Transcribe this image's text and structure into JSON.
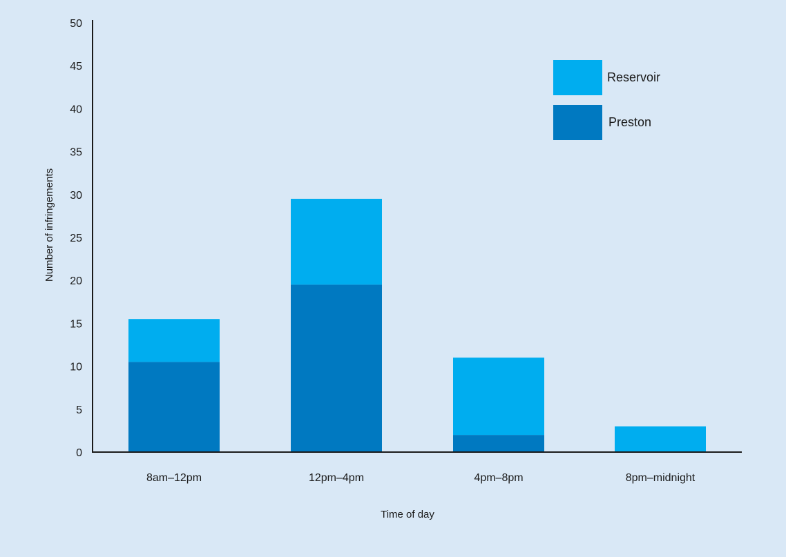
{
  "chart_data": {
    "type": "bar",
    "stacked": true,
    "categories": [
      "8am–12pm",
      "12pm–4pm",
      "4pm–8pm",
      "8pm–midnight"
    ],
    "series": [
      {
        "name": "Preston",
        "values": [
          10.5,
          19.5,
          2,
          0
        ],
        "color": "#0079c1"
      },
      {
        "name": "Reservoir",
        "values": [
          5,
          10,
          9,
          3
        ],
        "color": "#00adef"
      }
    ],
    "xlabel": "Time of day",
    "ylabel": "Number of infringements",
    "ylim": [
      0,
      50
    ],
    "yticks": [
      0,
      5,
      10,
      15,
      20,
      25,
      30,
      35,
      40,
      45,
      50
    ],
    "grid": false,
    "legend_position": "top-right"
  }
}
